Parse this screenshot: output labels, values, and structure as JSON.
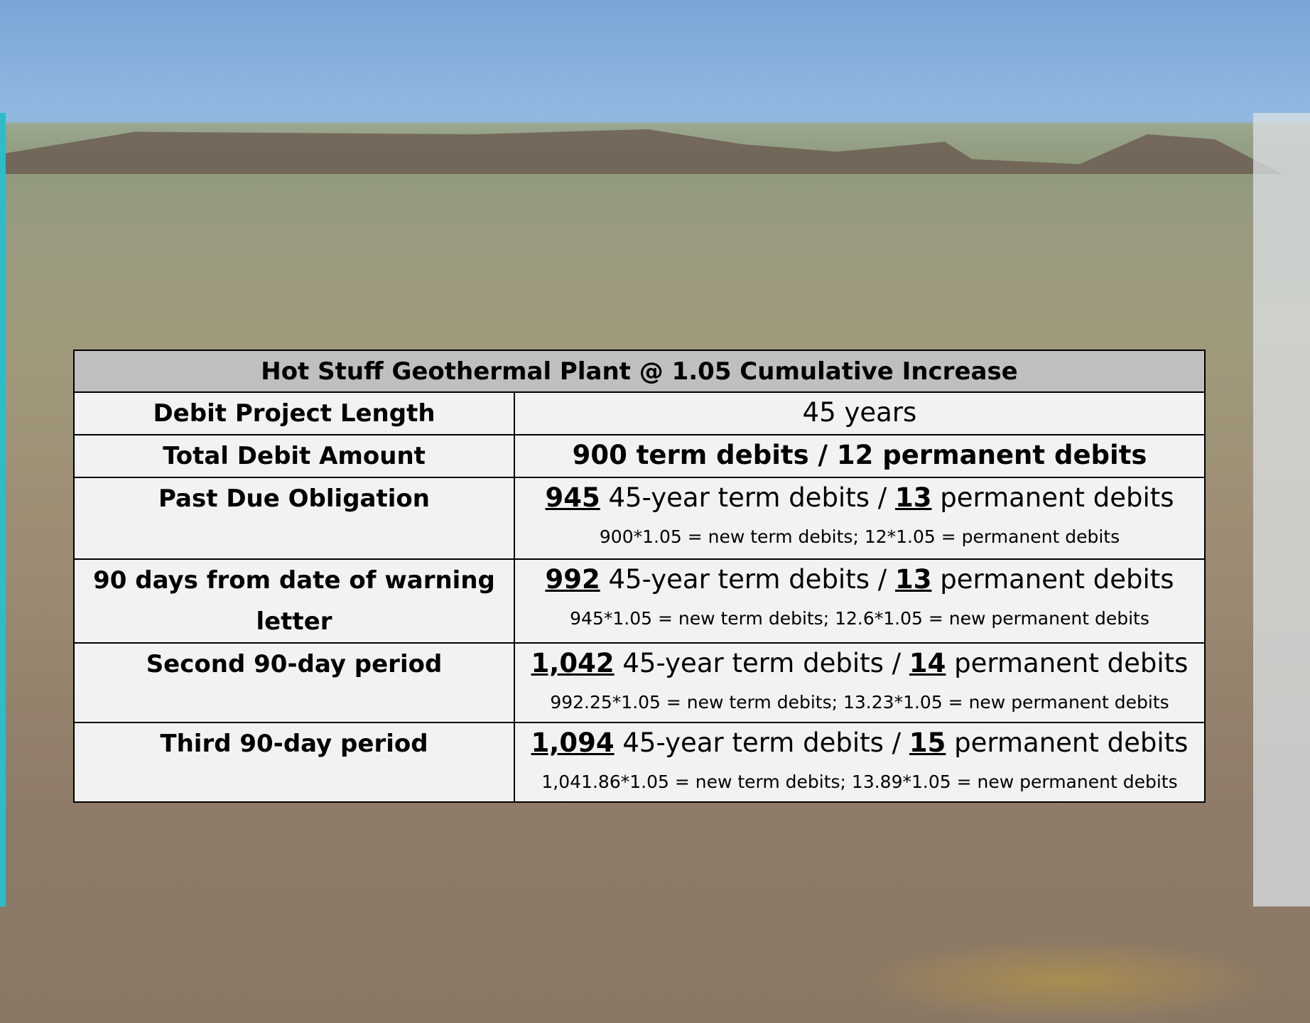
{
  "table": {
    "title": "Hot Stuff Geothermal Plant @ 1.05 Cumulative Increase",
    "rows": [
      {
        "label": "Debit Project Length",
        "value": "45 years"
      },
      {
        "label": "Total Debit Amount",
        "value": "900 term debits / 12 permanent debits"
      },
      {
        "label": "Past Due Obligation",
        "parts": [
          "945",
          "45-year term debits /",
          "13",
          "permanent debits"
        ],
        "note": "900*1.05 = new term debits; 12*1.05 = permanent debits"
      },
      {
        "label": "90 days from date of warning letter",
        "parts": [
          "992",
          "45-year term debits /",
          "13",
          "permanent debits"
        ],
        "note": "945*1.05 = new term debits; 12.6*1.05 = new permanent debits"
      },
      {
        "label": "Second 90-day period",
        "parts": [
          "1,042",
          "45-year term debits /",
          "14",
          "permanent debits"
        ],
        "note": "992.25*1.05 = new term debits; 13.23*1.05 = new permanent debits"
      },
      {
        "label": "Third 90-day period",
        "parts": [
          "1,094",
          "45-year term debits /",
          "15",
          "permanent debits"
        ],
        "note": "1,041.86*1.05 = new term debits; 13.89*1.05 = new permanent debits"
      }
    ]
  }
}
